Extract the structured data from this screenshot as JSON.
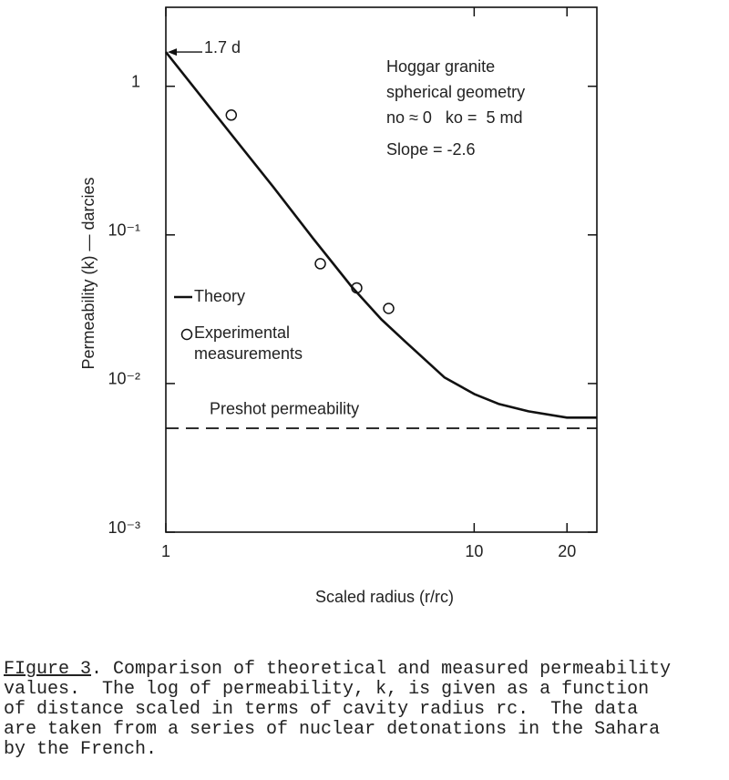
{
  "chart_data": {
    "type": "line",
    "x_label": "Scaled radius (r/rc)",
    "y_label": "Permeability (k) — darcies",
    "log_x": true,
    "log_y": true,
    "xlim": [
      1,
      25
    ],
    "ylim": [
      0.001,
      3.4
    ],
    "xticks": [
      1,
      10,
      20
    ],
    "yticks": [
      1,
      {
        "value": 0.1,
        "label": "10⁻¹"
      },
      {
        "value": 0.01,
        "label": "10⁻²"
      },
      {
        "value": 0.001,
        "label": "10⁻³"
      }
    ],
    "series": [
      {
        "name": "Theory",
        "mode": "line",
        "color": "#111",
        "x": [
          1,
          1.5,
          2.23,
          3,
          4,
          5,
          6,
          8,
          10,
          12,
          15,
          20,
          25
        ],
        "values": [
          1.7,
          0.59,
          0.21,
          0.095,
          0.045,
          0.027,
          0.019,
          0.011,
          0.0085,
          0.0073,
          0.0065,
          0.0059,
          0.0059
        ]
      },
      {
        "name": "Experimental measurements",
        "mode": "markers",
        "color": "#111",
        "x": [
          1.63,
          3.17,
          4.16,
          5.28
        ],
        "values": [
          0.64,
          0.064,
          0.044,
          0.032
        ]
      },
      {
        "name": "Preshot permeability",
        "mode": "dashed",
        "color": "#111",
        "x": [
          1,
          25
        ],
        "values": [
          0.005,
          0.005
        ]
      }
    ],
    "annotations": {
      "start_value": "1.7 d",
      "conditions": [
        "Hoggar granite",
        "spherical geometry",
        "no ≈ 0   ko =  5 md",
        "Slope = -2.6"
      ]
    }
  },
  "caption": {
    "figure_label": "FIgure 3",
    "lines": [
      ". Comparison of theoretical and measured permeability",
      "values.  The log of permeability, k, is given as a function",
      "of distance scaled in terms of cavity radius rc.  The data",
      "are taken from a series of nuclear detonations in the Sahara",
      "by the French."
    ]
  }
}
